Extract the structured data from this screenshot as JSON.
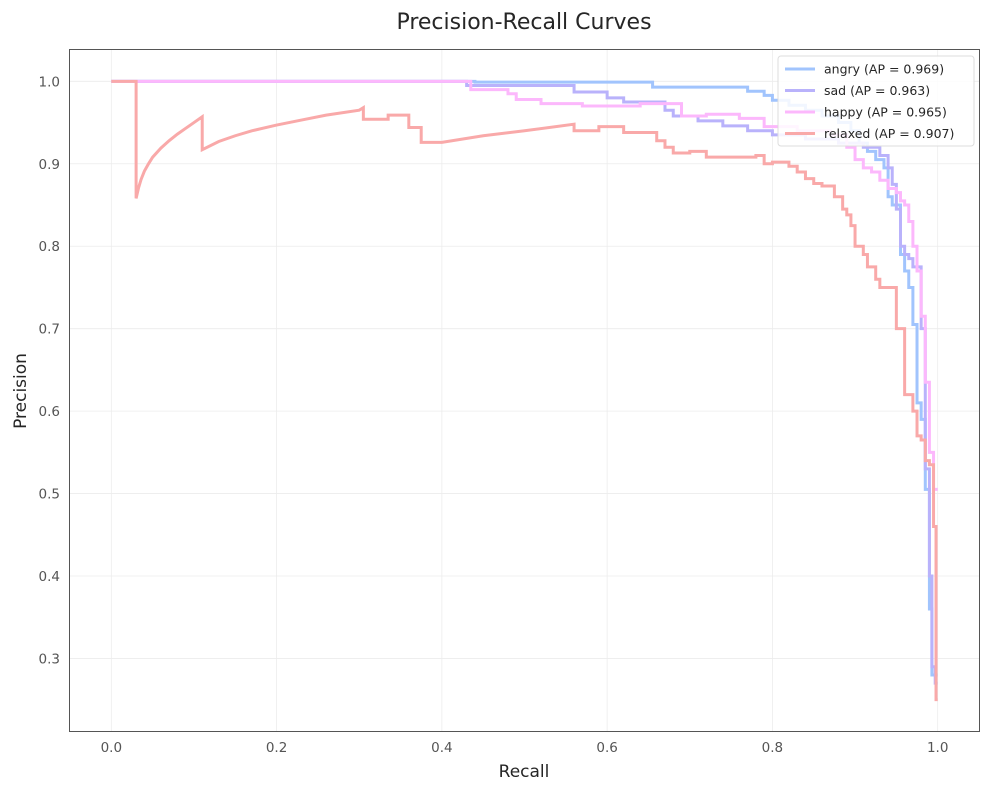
{
  "chart_data": {
    "type": "line",
    "title": "Precision-Recall Curves",
    "xlabel": "Recall",
    "ylabel": "Precision",
    "xlim": [
      -0.05,
      1.05
    ],
    "ylim": [
      0.212,
      1.038
    ],
    "xticks": [
      0.0,
      0.2,
      0.4,
      0.6,
      0.8,
      1.0
    ],
    "xtick_labels": [
      "0.0",
      "0.2",
      "0.4",
      "0.6",
      "0.8",
      "1.0"
    ],
    "yticks": [
      0.3,
      0.4,
      0.5,
      0.6,
      0.7,
      0.8,
      0.9,
      1.0
    ],
    "ytick_labels": [
      "0.3",
      "0.4",
      "0.5",
      "0.6",
      "0.7",
      "0.8",
      "0.9",
      "1.0"
    ],
    "grid": true,
    "legend_position": "top-right",
    "series": [
      {
        "name": "angry (AP = 0.969)",
        "color": "#a1c4fd",
        "points": [
          [
            0.0,
            1.0
          ],
          [
            0.44,
            1.0
          ],
          [
            0.44,
            0.999
          ],
          [
            0.655,
            0.999
          ],
          [
            0.655,
            0.993
          ],
          [
            0.77,
            0.993
          ],
          [
            0.77,
            0.988
          ],
          [
            0.79,
            0.988
          ],
          [
            0.79,
            0.983
          ],
          [
            0.8,
            0.983
          ],
          [
            0.8,
            0.977
          ],
          [
            0.82,
            0.977
          ],
          [
            0.82,
            0.971
          ],
          [
            0.84,
            0.971
          ],
          [
            0.84,
            0.965
          ],
          [
            0.86,
            0.965
          ],
          [
            0.86,
            0.958
          ],
          [
            0.88,
            0.958
          ],
          [
            0.88,
            0.95
          ],
          [
            0.895,
            0.95
          ],
          [
            0.895,
            0.94
          ],
          [
            0.905,
            0.94
          ],
          [
            0.905,
            0.925
          ],
          [
            0.915,
            0.925
          ],
          [
            0.915,
            0.915
          ],
          [
            0.925,
            0.915
          ],
          [
            0.925,
            0.905
          ],
          [
            0.935,
            0.905
          ],
          [
            0.935,
            0.895
          ],
          [
            0.94,
            0.895
          ],
          [
            0.94,
            0.86
          ],
          [
            0.945,
            0.86
          ],
          [
            0.945,
            0.85
          ],
          [
            0.955,
            0.85
          ],
          [
            0.955,
            0.79
          ],
          [
            0.96,
            0.79
          ],
          [
            0.96,
            0.77
          ],
          [
            0.965,
            0.77
          ],
          [
            0.965,
            0.75
          ],
          [
            0.97,
            0.75
          ],
          [
            0.97,
            0.705
          ],
          [
            0.975,
            0.705
          ],
          [
            0.975,
            0.61
          ],
          [
            0.98,
            0.61
          ],
          [
            0.98,
            0.59
          ],
          [
            0.985,
            0.59
          ],
          [
            0.985,
            0.505
          ],
          [
            0.99,
            0.505
          ],
          [
            0.99,
            0.36
          ],
          [
            0.993,
            0.36
          ],
          [
            0.993,
            0.28
          ],
          [
            1.0,
            0.28
          ]
        ]
      },
      {
        "name": "sad (AP = 0.963)",
        "color": "#b9b2fb",
        "points": [
          [
            0.0,
            1.0
          ],
          [
            0.43,
            1.0
          ],
          [
            0.43,
            0.995
          ],
          [
            0.56,
            0.995
          ],
          [
            0.56,
            0.987
          ],
          [
            0.6,
            0.987
          ],
          [
            0.6,
            0.98
          ],
          [
            0.62,
            0.98
          ],
          [
            0.62,
            0.975
          ],
          [
            0.67,
            0.975
          ],
          [
            0.67,
            0.965
          ],
          [
            0.68,
            0.965
          ],
          [
            0.68,
            0.958
          ],
          [
            0.71,
            0.958
          ],
          [
            0.71,
            0.952
          ],
          [
            0.74,
            0.952
          ],
          [
            0.74,
            0.946
          ],
          [
            0.77,
            0.946
          ],
          [
            0.77,
            0.94
          ],
          [
            0.8,
            0.94
          ],
          [
            0.8,
            0.935
          ],
          [
            0.84,
            0.935
          ],
          [
            0.84,
            0.93
          ],
          [
            0.88,
            0.93
          ],
          [
            0.88,
            0.925
          ],
          [
            0.91,
            0.925
          ],
          [
            0.91,
            0.92
          ],
          [
            0.93,
            0.92
          ],
          [
            0.93,
            0.91
          ],
          [
            0.94,
            0.91
          ],
          [
            0.94,
            0.895
          ],
          [
            0.945,
            0.895
          ],
          [
            0.945,
            0.875
          ],
          [
            0.95,
            0.875
          ],
          [
            0.95,
            0.845
          ],
          [
            0.955,
            0.845
          ],
          [
            0.955,
            0.8
          ],
          [
            0.96,
            0.8
          ],
          [
            0.96,
            0.79
          ],
          [
            0.965,
            0.79
          ],
          [
            0.965,
            0.785
          ],
          [
            0.97,
            0.785
          ],
          [
            0.97,
            0.775
          ],
          [
            0.98,
            0.775
          ],
          [
            0.98,
            0.7
          ],
          [
            0.985,
            0.7
          ],
          [
            0.985,
            0.53
          ],
          [
            0.99,
            0.53
          ],
          [
            0.99,
            0.4
          ],
          [
            0.993,
            0.4
          ],
          [
            0.993,
            0.29
          ],
          [
            0.997,
            0.29
          ],
          [
            0.997,
            0.27
          ],
          [
            1.0,
            0.27
          ]
        ]
      },
      {
        "name": "happy (AP = 0.965)",
        "color": "#fcb8fc",
        "points": [
          [
            0.0,
            1.0
          ],
          [
            0.435,
            1.0
          ],
          [
            0.435,
            0.99
          ],
          [
            0.48,
            0.99
          ],
          [
            0.48,
            0.985
          ],
          [
            0.49,
            0.985
          ],
          [
            0.49,
            0.978
          ],
          [
            0.52,
            0.978
          ],
          [
            0.52,
            0.973
          ],
          [
            0.57,
            0.973
          ],
          [
            0.57,
            0.97
          ],
          [
            0.64,
            0.97
          ],
          [
            0.64,
            0.973
          ],
          [
            0.69,
            0.973
          ],
          [
            0.69,
            0.958
          ],
          [
            0.72,
            0.958
          ],
          [
            0.72,
            0.96
          ],
          [
            0.76,
            0.96
          ],
          [
            0.76,
            0.955
          ],
          [
            0.79,
            0.955
          ],
          [
            0.79,
            0.945
          ],
          [
            0.83,
            0.945
          ],
          [
            0.83,
            0.94
          ],
          [
            0.87,
            0.94
          ],
          [
            0.87,
            0.935
          ],
          [
            0.89,
            0.935
          ],
          [
            0.89,
            0.92
          ],
          [
            0.9,
            0.92
          ],
          [
            0.9,
            0.905
          ],
          [
            0.91,
            0.905
          ],
          [
            0.91,
            0.895
          ],
          [
            0.92,
            0.895
          ],
          [
            0.92,
            0.89
          ],
          [
            0.93,
            0.89
          ],
          [
            0.93,
            0.88
          ],
          [
            0.94,
            0.88
          ],
          [
            0.94,
            0.87
          ],
          [
            0.95,
            0.87
          ],
          [
            0.95,
            0.865
          ],
          [
            0.955,
            0.865
          ],
          [
            0.955,
            0.855
          ],
          [
            0.96,
            0.855
          ],
          [
            0.96,
            0.85
          ],
          [
            0.965,
            0.85
          ],
          [
            0.965,
            0.83
          ],
          [
            0.97,
            0.83
          ],
          [
            0.97,
            0.8
          ],
          [
            0.975,
            0.8
          ],
          [
            0.975,
            0.77
          ],
          [
            0.98,
            0.77
          ],
          [
            0.98,
            0.715
          ],
          [
            0.985,
            0.715
          ],
          [
            0.985,
            0.635
          ],
          [
            0.99,
            0.635
          ],
          [
            0.99,
            0.55
          ],
          [
            0.995,
            0.55
          ],
          [
            0.995,
            0.505
          ],
          [
            1.0,
            0.505
          ]
        ]
      },
      {
        "name": "relaxed (AP = 0.907)",
        "color": "#f9a9a9",
        "points": [
          [
            0.0,
            1.0
          ],
          [
            0.03,
            1.0
          ],
          [
            0.03,
            0.858
          ],
          [
            0.033,
            0.871
          ],
          [
            0.036,
            0.881
          ],
          [
            0.04,
            0.891
          ],
          [
            0.045,
            0.9
          ],
          [
            0.05,
            0.908
          ],
          [
            0.06,
            0.919
          ],
          [
            0.07,
            0.928
          ],
          [
            0.08,
            0.936
          ],
          [
            0.09,
            0.943
          ],
          [
            0.1,
            0.95
          ],
          [
            0.11,
            0.957
          ],
          [
            0.11,
            0.917
          ],
          [
            0.13,
            0.927
          ],
          [
            0.15,
            0.934
          ],
          [
            0.17,
            0.94
          ],
          [
            0.2,
            0.947
          ],
          [
            0.23,
            0.953
          ],
          [
            0.26,
            0.959
          ],
          [
            0.3,
            0.965
          ],
          [
            0.305,
            0.968
          ],
          [
            0.305,
            0.954
          ],
          [
            0.335,
            0.954
          ],
          [
            0.335,
            0.959
          ],
          [
            0.36,
            0.959
          ],
          [
            0.36,
            0.944
          ],
          [
            0.375,
            0.944
          ],
          [
            0.375,
            0.926
          ],
          [
            0.4,
            0.926
          ],
          [
            0.45,
            0.934
          ],
          [
            0.5,
            0.94
          ],
          [
            0.56,
            0.948
          ],
          [
            0.56,
            0.94
          ],
          [
            0.59,
            0.94
          ],
          [
            0.59,
            0.945
          ],
          [
            0.62,
            0.945
          ],
          [
            0.62,
            0.938
          ],
          [
            0.66,
            0.938
          ],
          [
            0.66,
            0.928
          ],
          [
            0.67,
            0.928
          ],
          [
            0.67,
            0.92
          ],
          [
            0.68,
            0.92
          ],
          [
            0.68,
            0.913
          ],
          [
            0.7,
            0.913
          ],
          [
            0.7,
            0.915
          ],
          [
            0.72,
            0.915
          ],
          [
            0.72,
            0.908
          ],
          [
            0.78,
            0.908
          ],
          [
            0.78,
            0.91
          ],
          [
            0.79,
            0.91
          ],
          [
            0.79,
            0.9
          ],
          [
            0.8,
            0.9
          ],
          [
            0.8,
            0.902
          ],
          [
            0.82,
            0.902
          ],
          [
            0.82,
            0.897
          ],
          [
            0.83,
            0.897
          ],
          [
            0.83,
            0.89
          ],
          [
            0.84,
            0.89
          ],
          [
            0.84,
            0.882
          ],
          [
            0.85,
            0.882
          ],
          [
            0.85,
            0.876
          ],
          [
            0.86,
            0.876
          ],
          [
            0.86,
            0.873
          ],
          [
            0.875,
            0.873
          ],
          [
            0.875,
            0.86
          ],
          [
            0.885,
            0.86
          ],
          [
            0.885,
            0.845
          ],
          [
            0.89,
            0.845
          ],
          [
            0.89,
            0.838
          ],
          [
            0.895,
            0.838
          ],
          [
            0.895,
            0.825
          ],
          [
            0.9,
            0.825
          ],
          [
            0.9,
            0.8
          ],
          [
            0.91,
            0.8
          ],
          [
            0.91,
            0.79
          ],
          [
            0.915,
            0.79
          ],
          [
            0.915,
            0.775
          ],
          [
            0.925,
            0.775
          ],
          [
            0.925,
            0.76
          ],
          [
            0.93,
            0.76
          ],
          [
            0.93,
            0.75
          ],
          [
            0.94,
            0.75
          ],
          [
            0.94,
            0.75
          ],
          [
            0.95,
            0.75
          ],
          [
            0.95,
            0.7
          ],
          [
            0.96,
            0.7
          ],
          [
            0.96,
            0.62
          ],
          [
            0.97,
            0.62
          ],
          [
            0.97,
            0.6
          ],
          [
            0.975,
            0.6
          ],
          [
            0.975,
            0.57
          ],
          [
            0.98,
            0.57
          ],
          [
            0.98,
            0.565
          ],
          [
            0.985,
            0.565
          ],
          [
            0.985,
            0.54
          ],
          [
            0.99,
            0.54
          ],
          [
            0.99,
            0.535
          ],
          [
            0.995,
            0.535
          ],
          [
            0.995,
            0.46
          ],
          [
            0.998,
            0.46
          ],
          [
            0.998,
            0.25
          ],
          [
            1.0,
            0.25
          ]
        ]
      }
    ]
  }
}
